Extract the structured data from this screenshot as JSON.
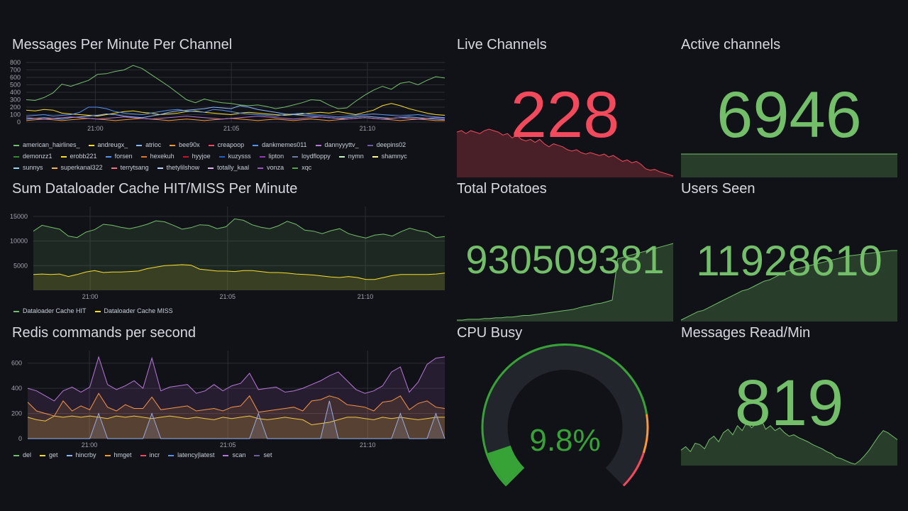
{
  "panels": {
    "messages": {
      "title": "Messages Per Minute Per Channel",
      "legend": [
        {
          "name": "american_hairlines_",
          "color": "#73bf69"
        },
        {
          "name": "andreugx_",
          "color": "#fade2a"
        },
        {
          "name": "atrioc",
          "color": "#8ab8ff"
        },
        {
          "name": "bee90x",
          "color": "#ff9830"
        },
        {
          "name": "creapoop",
          "color": "#f2495c"
        },
        {
          "name": "dankmemes011",
          "color": "#5794f2"
        },
        {
          "name": "dannyyyttv_",
          "color": "#b877d9"
        },
        {
          "name": "deepins02",
          "color": "#705da0"
        },
        {
          "name": "demonzz1",
          "color": "#37872d"
        },
        {
          "name": "erobb221",
          "color": "#fade2a"
        },
        {
          "name": "forsen",
          "color": "#5794f2"
        },
        {
          "name": "hexekuh",
          "color": "#e0752d"
        },
        {
          "name": "hyyjoe",
          "color": "#c4162a"
        },
        {
          "name": "kuzysss",
          "color": "#1f60c4"
        },
        {
          "name": "lipton",
          "color": "#8f3bb8"
        },
        {
          "name": "loydfloppy",
          "color": "#6e7a9e"
        },
        {
          "name": "nymn",
          "color": "#c8f2c2"
        },
        {
          "name": "shamnyc",
          "color": "#fff899"
        },
        {
          "name": "sunnys",
          "color": "#8ad9ff"
        },
        {
          "name": "superkanal322",
          "color": "#ffb357"
        },
        {
          "name": "terrytsang",
          "color": "#ff7383"
        },
        {
          "name": "thetylilshow",
          "color": "#c0d8ff"
        },
        {
          "name": "totally_kaal",
          "color": "#deb6f2"
        },
        {
          "name": "vonza",
          "color": "#a352cc"
        },
        {
          "name": "xqc",
          "color": "#56a64b"
        }
      ]
    },
    "cache": {
      "title": "Sum Dataloader Cache HIT/MISS Per Minute",
      "legend": [
        {
          "name": "Dataloader Cache HIT",
          "color": "#73bf69"
        },
        {
          "name": "Dataloader Cache MISS",
          "color": "#fade2a"
        }
      ]
    },
    "redis": {
      "title": "Redis commands per second",
      "legend": [
        {
          "name": "del",
          "color": "#73bf69"
        },
        {
          "name": "get",
          "color": "#fade2a"
        },
        {
          "name": "hincrby",
          "color": "#8ab8ff"
        },
        {
          "name": "hmget",
          "color": "#ff9830"
        },
        {
          "name": "incr",
          "color": "#f2495c"
        },
        {
          "name": "latency|latest",
          "color": "#5794f2"
        },
        {
          "name": "scan",
          "color": "#b877d9"
        },
        {
          "name": "set",
          "color": "#705da0"
        }
      ]
    },
    "live_channels": {
      "title": "Live Channels",
      "value": "228",
      "color": "#f2495c",
      "spark_color": "#f2495c",
      "spark_fill": "rgba(242,73,92,0.25)"
    },
    "active_channels": {
      "title": "Active channels",
      "value": "6946",
      "color": "#73bf69",
      "spark_color": "#73bf69",
      "spark_fill": "rgba(115,191,105,0.25)"
    },
    "total_potatoes": {
      "title": "Total Potatoes",
      "value": "930509381",
      "color": "#73bf69",
      "spark_color": "#73bf69",
      "spark_fill": "rgba(115,191,105,0.25)"
    },
    "users_seen": {
      "title": "Users Seen",
      "value": "11928610",
      "color": "#73bf69",
      "spark_color": "#73bf69",
      "spark_fill": "rgba(115,191,105,0.25)"
    },
    "cpu_busy": {
      "title": "CPU Busy",
      "value": "9.8%",
      "percent": 9.8,
      "color": "#37a336",
      "threshold_orange": "#ff9830",
      "threshold_red": "#f2495c",
      "track": "#22252b"
    },
    "messages_read": {
      "title": "Messages Read/Min",
      "value": "819",
      "color": "#73bf69",
      "spark_color": "#73bf69",
      "spark_fill": "rgba(115,191,105,0.25)"
    }
  },
  "chart_data": [
    {
      "type": "line",
      "title": "Messages Per Minute Per Channel",
      "ylim": [
        0,
        800
      ],
      "yticks": [
        "0",
        "100",
        "200",
        "300",
        "400",
        "500",
        "600",
        "700",
        "800"
      ],
      "xticks": [
        "21:00",
        "21:05",
        "21:10"
      ],
      "series": [
        {
          "name": "american_hairlines_",
          "color": "#73bf69",
          "values": [
            300,
            290,
            330,
            390,
            510,
            480,
            520,
            560,
            640,
            650,
            680,
            700,
            760,
            720,
            640,
            560,
            480,
            390,
            300,
            260,
            310,
            280,
            260,
            250,
            230,
            220,
            230,
            210,
            180,
            200,
            230,
            260,
            300,
            290,
            230,
            180,
            190,
            280,
            360,
            430,
            480,
            440,
            520,
            540,
            500,
            560,
            610,
            590
          ]
        },
        {
          "name": "andreugx_",
          "color": "#fade2a",
          "values": [
            160,
            150,
            170,
            160,
            120,
            110,
            100,
            90,
            80,
            100,
            120,
            140,
            150,
            130,
            120,
            100,
            110,
            120,
            140,
            150,
            130,
            120,
            110,
            100,
            120,
            130,
            120,
            110,
            100,
            90,
            100,
            110,
            120,
            130,
            120,
            140,
            120,
            100,
            130,
            160,
            220,
            250,
            220,
            180,
            150,
            120,
            100,
            90
          ]
        },
        {
          "name": "dankmemes011",
          "color": "#5794f2",
          "values": [
            80,
            90,
            100,
            80,
            90,
            100,
            130,
            200,
            200,
            180,
            140,
            120,
            110,
            100,
            120,
            140,
            160,
            170,
            150,
            140,
            130,
            170,
            160,
            140,
            120,
            110,
            100,
            90,
            80,
            100,
            110,
            120,
            100,
            90,
            80,
            70,
            80,
            90,
            100,
            110,
            100,
            90,
            80,
            90,
            100,
            80,
            70,
            60
          ]
        },
        {
          "name": "forsen",
          "color": "#8ab8ff",
          "values": [
            40,
            50,
            60,
            50,
            40,
            60,
            70,
            80,
            90,
            110,
            100,
            80,
            70,
            60,
            80,
            100,
            130,
            150,
            160,
            170,
            180,
            200,
            190,
            180,
            220,
            200,
            170,
            150,
            130,
            110,
            100,
            90,
            80,
            70,
            60,
            50,
            60,
            70,
            80,
            70,
            60,
            50,
            60,
            70,
            60,
            50,
            40,
            30
          ]
        },
        {
          "name": "xqc",
          "color": "#ff9830",
          "values": [
            20,
            30,
            40,
            30,
            20,
            30,
            40,
            50,
            40,
            30,
            20,
            30,
            40,
            50,
            40,
            30,
            20,
            30,
            40,
            30,
            20,
            30,
            40,
            50,
            40,
            30,
            20,
            30,
            40,
            30,
            20,
            30,
            40,
            30,
            20,
            30,
            40,
            50,
            60,
            50,
            40,
            30,
            20,
            30,
            40,
            30,
            20,
            20
          ]
        },
        {
          "name": "nymn",
          "color": "#b877d9",
          "values": [
            60,
            50,
            40,
            50,
            60,
            70,
            60,
            50,
            40,
            50,
            60,
            70,
            60,
            50,
            40,
            50,
            60,
            70,
            80,
            70,
            60,
            50,
            40,
            50,
            60,
            70,
            80,
            70,
            60,
            50,
            40,
            50,
            60,
            70,
            60,
            50,
            40,
            50,
            60,
            50,
            40,
            50,
            60,
            50,
            40,
            50,
            60,
            50
          ]
        }
      ]
    },
    {
      "type": "area",
      "title": "Sum Dataloader Cache HIT/MISS Per Minute",
      "ylim": [
        0,
        17000
      ],
      "yticks": [
        "5000",
        "10000",
        "15000"
      ],
      "xticks": [
        "21:00",
        "21:05",
        "21:10"
      ],
      "series": [
        {
          "name": "Dataloader Cache HIT",
          "color": "#73bf69",
          "values": [
            12000,
            13200,
            12800,
            12400,
            11000,
            10700,
            11800,
            12300,
            13400,
            13200,
            12800,
            12500,
            12900,
            13400,
            14100,
            13900,
            13200,
            12400,
            12700,
            13300,
            13200,
            12500,
            12900,
            14500,
            14200,
            13300,
            12800,
            12500,
            13100,
            14000,
            13400,
            12200,
            12000,
            11500,
            12100,
            12500,
            11500,
            11000,
            10600,
            11200,
            11400,
            11000,
            11900,
            12600,
            12100,
            11800,
            10700,
            10900
          ]
        },
        {
          "name": "Dataloader Cache MISS",
          "color": "#fade2a",
          "values": [
            3200,
            3300,
            3200,
            3300,
            2800,
            3200,
            3700,
            4000,
            3600,
            3700,
            3700,
            3800,
            3900,
            4400,
            4700,
            5000,
            5100,
            5200,
            5100,
            4300,
            4100,
            3900,
            3900,
            3800,
            4000,
            4000,
            3800,
            3600,
            3600,
            3500,
            3300,
            3200,
            3100,
            2900,
            2700,
            2600,
            2800,
            2600,
            2200,
            2200,
            2600,
            3000,
            3200,
            3200,
            3200,
            3200,
            3300,
            3500
          ]
        }
      ]
    },
    {
      "type": "area",
      "title": "Redis commands per second",
      "ylim": [
        0,
        700
      ],
      "yticks": [
        "0",
        "200",
        "400",
        "600"
      ],
      "xticks": [
        "21:00",
        "21:05",
        "21:10"
      ],
      "series": [
        {
          "name": "get",
          "color": "#fade2a",
          "values": [
            170,
            150,
            140,
            180,
            170,
            180,
            170,
            180,
            170,
            160,
            180,
            170,
            180,
            170,
            160,
            170,
            180,
            170,
            160,
            170,
            160,
            150,
            170,
            160,
            170,
            180,
            160,
            150,
            160,
            170,
            160,
            150,
            110,
            120,
            130,
            150,
            170,
            170,
            160,
            150,
            170,
            160,
            170,
            160,
            150,
            160,
            170,
            170
          ]
        },
        {
          "name": "hincrby",
          "color": "#8ab8ff",
          "values": [
            0,
            0,
            0,
            0,
            0,
            0,
            0,
            0,
            200,
            0,
            0,
            0,
            0,
            0,
            200,
            0,
            0,
            0,
            0,
            0,
            0,
            0,
            0,
            0,
            0,
            0,
            200,
            0,
            0,
            0,
            0,
            0,
            0,
            0,
            300,
            0,
            0,
            0,
            0,
            0,
            0,
            0,
            200,
            0,
            0,
            0,
            200,
            0
          ]
        },
        {
          "name": "hmget",
          "color": "#ff9830",
          "values": [
            290,
            220,
            200,
            180,
            300,
            220,
            260,
            230,
            360,
            250,
            220,
            270,
            240,
            240,
            330,
            230,
            240,
            250,
            260,
            220,
            230,
            240,
            220,
            250,
            260,
            340,
            210,
            220,
            230,
            240,
            250,
            220,
            300,
            310,
            340,
            320,
            270,
            260,
            250,
            220,
            290,
            300,
            340,
            230,
            280,
            300,
            250,
            240
          ]
        },
        {
          "name": "scan",
          "color": "#b877d9",
          "values": [
            400,
            380,
            340,
            300,
            380,
            410,
            370,
            410,
            650,
            430,
            390,
            420,
            460,
            400,
            640,
            380,
            410,
            420,
            430,
            360,
            380,
            430,
            380,
            420,
            440,
            520,
            390,
            400,
            410,
            370,
            380,
            400,
            430,
            460,
            500,
            530,
            460,
            390,
            360,
            380,
            420,
            530,
            570,
            370,
            450,
            590,
            640,
            650
          ]
        }
      ]
    }
  ]
}
